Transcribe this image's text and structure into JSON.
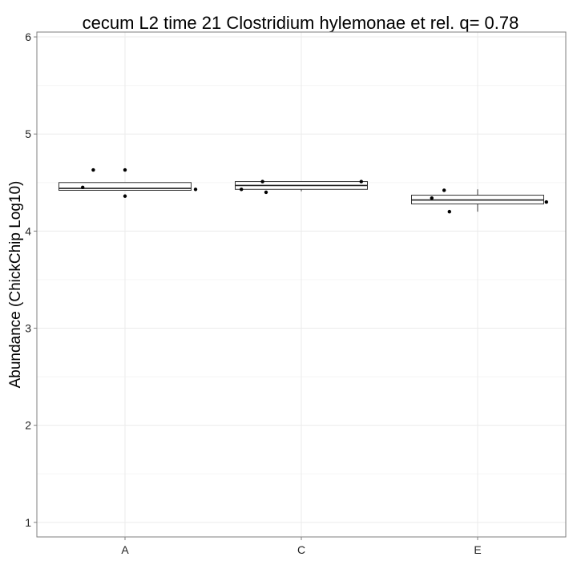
{
  "chart_data": {
    "type": "boxplot",
    "title": "cecum L2 time 21 Clostridium hylemonae et rel. q= 0.78",
    "xlabel": "",
    "ylabel": "Abundance (ChickChip Log10)",
    "ylim": [
      0.85,
      6.05
    ],
    "yticks": [
      1,
      2,
      3,
      4,
      5,
      6
    ],
    "categories": [
      "A",
      "C",
      "E"
    ],
    "boxes": [
      {
        "category": "A",
        "lower": 4.42,
        "q1": 4.42,
        "median": 4.44,
        "q3": 4.5,
        "upper": 4.5
      },
      {
        "category": "C",
        "lower": 4.41,
        "q1": 4.43,
        "median": 4.47,
        "q3": 4.51,
        "upper": 4.51
      },
      {
        "category": "E",
        "lower": 4.2,
        "q1": 4.28,
        "median": 4.32,
        "q3": 4.37,
        "upper": 4.43
      }
    ],
    "points": [
      {
        "category": "A",
        "offset": -0.24,
        "y": 4.45
      },
      {
        "category": "A",
        "offset": -0.18,
        "y": 4.63
      },
      {
        "category": "A",
        "offset": 0.0,
        "y": 4.63
      },
      {
        "category": "A",
        "offset": 0.0,
        "y": 4.36
      },
      {
        "category": "A",
        "offset": 0.4,
        "y": 4.43
      },
      {
        "category": "C",
        "offset": -0.34,
        "y": 4.43
      },
      {
        "category": "C",
        "offset": -0.22,
        "y": 4.51
      },
      {
        "category": "C",
        "offset": -0.2,
        "y": 4.4
      },
      {
        "category": "C",
        "offset": 0.34,
        "y": 4.51
      },
      {
        "category": "E",
        "offset": -0.26,
        "y": 4.34
      },
      {
        "category": "E",
        "offset": -0.19,
        "y": 4.42
      },
      {
        "category": "E",
        "offset": -0.16,
        "y": 4.2
      },
      {
        "category": "E",
        "offset": 0.39,
        "y": 4.3
      }
    ],
    "grid": true,
    "legend": "none"
  }
}
